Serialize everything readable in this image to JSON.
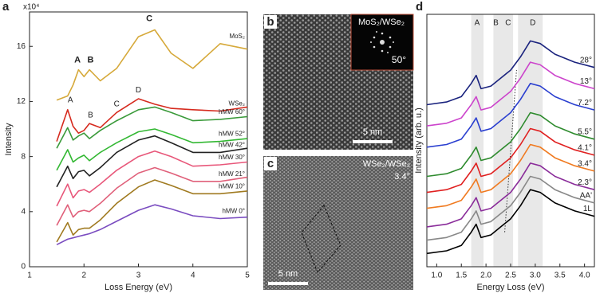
{
  "chart_data": [
    {
      "type": "line",
      "label": "a",
      "x_label": "Loss Energy (eV)",
      "y_label": "Intensity",
      "y_scale_label": "x10⁴",
      "xlim": [
        1,
        5
      ],
      "ylim": [
        0,
        18.5
      ],
      "xticks": [
        1,
        2,
        3,
        4,
        5
      ],
      "yticks": [
        0,
        4,
        8,
        12,
        16
      ],
      "x": [
        1.5,
        1.7,
        1.8,
        1.9,
        2.0,
        2.1,
        2.3,
        2.6,
        3.0,
        3.3,
        3.6,
        4.0,
        4.5,
        5.0
      ],
      "series": [
        {
          "name": "MoS₂",
          "color": "#d6a93a",
          "values": [
            12.1,
            12.4,
            13.2,
            14.3,
            13.8,
            14.3,
            13.5,
            14.4,
            16.7,
            17.2,
            15.5,
            14.4,
            16.2,
            15.8
          ]
        },
        {
          "name": "WSe₂",
          "color": "#d62a1e",
          "values": [
            9.1,
            11.4,
            10.2,
            9.7,
            9.9,
            10.4,
            10.1,
            11.2,
            12.2,
            11.8,
            11.5,
            11.4,
            11.3,
            11.6
          ]
        },
        {
          "name": "hMW 60°",
          "color": "#3a9a3a",
          "values": [
            8.6,
            10.1,
            9.2,
            9.5,
            9.7,
            9.3,
            9.9,
            10.6,
            11.4,
            11.6,
            11.2,
            10.6,
            10.7,
            10.9
          ]
        },
        {
          "name": "hMW 52°",
          "color": "#33b833",
          "values": [
            7.0,
            8.5,
            7.6,
            7.9,
            8.1,
            7.7,
            8.3,
            9.0,
            9.8,
            10.0,
            9.6,
            9.0,
            9.1,
            9.3
          ]
        },
        {
          "name": "hMW 42°",
          "color": "#222222",
          "values": [
            5.8,
            7.3,
            6.4,
            6.9,
            7.0,
            6.6,
            7.2,
            8.3,
            9.2,
            9.5,
            9.0,
            8.3,
            8.3,
            8.6
          ]
        },
        {
          "name": "hMW 30°",
          "color": "#e8577a",
          "values": [
            4.4,
            6.0,
            5.0,
            5.5,
            5.6,
            5.4,
            6.0,
            7.0,
            8.0,
            8.4,
            8.0,
            7.3,
            7.4,
            7.6
          ]
        },
        {
          "name": "hMW 21°",
          "color": "#e0607a",
          "values": [
            3.0,
            4.5,
            3.6,
            4.0,
            4.1,
            4.0,
            4.6,
            5.7,
            6.8,
            7.2,
            6.8,
            6.2,
            6.2,
            6.5
          ]
        },
        {
          "name": "hMW 10°",
          "color": "#a07a20",
          "values": [
            1.8,
            3.2,
            2.3,
            2.7,
            2.8,
            2.8,
            3.4,
            4.6,
            5.8,
            6.3,
            5.9,
            5.3,
            5.3,
            5.5
          ]
        },
        {
          "name": "hMW 0°",
          "color": "#7a4cc0",
          "values": [
            1.6,
            2.0,
            2.1,
            2.2,
            2.3,
            2.4,
            2.7,
            3.3,
            4.1,
            4.5,
            4.2,
            3.7,
            3.5,
            3.6
          ]
        }
      ],
      "annotations": [
        {
          "text": "A",
          "x": 1.88,
          "y": 15.0,
          "color": "#333333"
        },
        {
          "text": "B",
          "x": 2.12,
          "y": 15.0,
          "color": "#333333"
        },
        {
          "text": "C",
          "x": 3.2,
          "y": 18.0,
          "color": "#333333"
        },
        {
          "text": "A",
          "x": 1.75,
          "y": 12.1,
          "color": "#888888"
        },
        {
          "text": "B",
          "x": 2.12,
          "y": 11.0,
          "color": "#888888"
        },
        {
          "text": "C",
          "x": 2.6,
          "y": 11.8,
          "color": "#888888"
        },
        {
          "text": "D",
          "x": 3.0,
          "y": 12.8,
          "color": "#888888"
        }
      ]
    },
    {
      "type": "line",
      "label": "d",
      "x_label": "Energy Loss (eV)",
      "y_label": "Intensity (arb. u.)",
      "xlim": [
        0.8,
        4.2
      ],
      "ylim": [
        0,
        9.5
      ],
      "xticks": [
        {
          "value": 1,
          "label": "1.0"
        },
        1.5,
        {
          "value": 2,
          "label": "2.0"
        },
        2.5,
        {
          "value": 3,
          "label": "3.0"
        },
        3.5,
        {
          "value": 4,
          "label": "4.0"
        }
      ],
      "x": [
        0.8,
        1.2,
        1.5,
        1.7,
        1.8,
        1.9,
        2.1,
        2.3,
        2.5,
        2.7,
        2.9,
        3.1,
        3.4,
        3.8,
        4.2
      ],
      "bands": [
        [
          1.7,
          1.95
        ],
        [
          2.15,
          2.55
        ],
        [
          2.65,
          3.15
        ]
      ],
      "annotations": [
        {
          "text": "A",
          "x": 1.82
        },
        {
          "text": "B",
          "x": 2.2
        },
        {
          "text": "C",
          "x": 2.45
        },
        {
          "text": "D",
          "x": 2.95
        }
      ],
      "guide_line": {
        "x": [
          2.38,
          2.62
        ],
        "y": [
          1.3,
          7.4
        ]
      },
      "series": [
        {
          "name": "28°",
          "color": "#1a237e",
          "values": [
            6.1,
            6.2,
            6.4,
            6.9,
            7.2,
            6.7,
            6.8,
            7.1,
            7.4,
            7.9,
            8.5,
            8.4,
            8.0,
            7.7,
            7.5
          ]
        },
        {
          "name": "13°",
          "color": "#cc44cc",
          "values": [
            5.3,
            5.4,
            5.6,
            6.1,
            6.4,
            5.9,
            6.0,
            6.3,
            6.6,
            7.1,
            7.7,
            7.6,
            7.2,
            6.9,
            6.7
          ]
        },
        {
          "name": "7.2°",
          "color": "#2a3fd0",
          "values": [
            4.5,
            4.6,
            4.8,
            5.3,
            5.6,
            5.1,
            5.2,
            5.5,
            5.8,
            6.3,
            6.9,
            6.8,
            6.4,
            6.1,
            5.9
          ]
        },
        {
          "name": "5.5°",
          "color": "#2e8b2e",
          "values": [
            3.4,
            3.5,
            3.7,
            4.2,
            4.5,
            4.0,
            4.1,
            4.4,
            4.7,
            5.2,
            5.8,
            5.7,
            5.3,
            5.0,
            4.8
          ]
        },
        {
          "name": "4.1°",
          "color": "#e02020",
          "values": [
            2.8,
            2.9,
            3.1,
            3.6,
            3.9,
            3.4,
            3.5,
            3.8,
            4.1,
            4.6,
            5.2,
            5.1,
            4.7,
            4.4,
            4.2
          ]
        },
        {
          "name": "3.4°",
          "color": "#f07a20",
          "values": [
            2.2,
            2.3,
            2.5,
            3.0,
            3.3,
            2.8,
            2.9,
            3.2,
            3.5,
            4.0,
            4.6,
            4.5,
            4.1,
            3.8,
            3.6
          ]
        },
        {
          "name": "2.3°",
          "color": "#8a2c9a",
          "values": [
            1.5,
            1.6,
            1.8,
            2.3,
            2.6,
            2.1,
            2.2,
            2.5,
            2.8,
            3.3,
            3.9,
            3.8,
            3.4,
            3.1,
            2.9
          ]
        },
        {
          "name": "AA'",
          "color": "#888888",
          "values": [
            1.0,
            1.1,
            1.3,
            1.8,
            2.1,
            1.6,
            1.7,
            2.0,
            2.3,
            2.8,
            3.4,
            3.3,
            2.9,
            2.6,
            2.4
          ]
        },
        {
          "name": "1L",
          "color": "#000000",
          "values": [
            0.5,
            0.6,
            0.8,
            1.3,
            1.6,
            1.1,
            1.2,
            1.5,
            1.8,
            2.3,
            2.9,
            2.8,
            2.4,
            2.1,
            1.9
          ]
        }
      ]
    }
  ],
  "images": [
    {
      "label": "b",
      "caption": "MoS₂/WSe₂",
      "angle": "50°",
      "scale": "5 nm"
    },
    {
      "label": "c",
      "caption": "WSe₂/WSe₂",
      "angle": "3.4°",
      "scale": "5 nm"
    }
  ]
}
